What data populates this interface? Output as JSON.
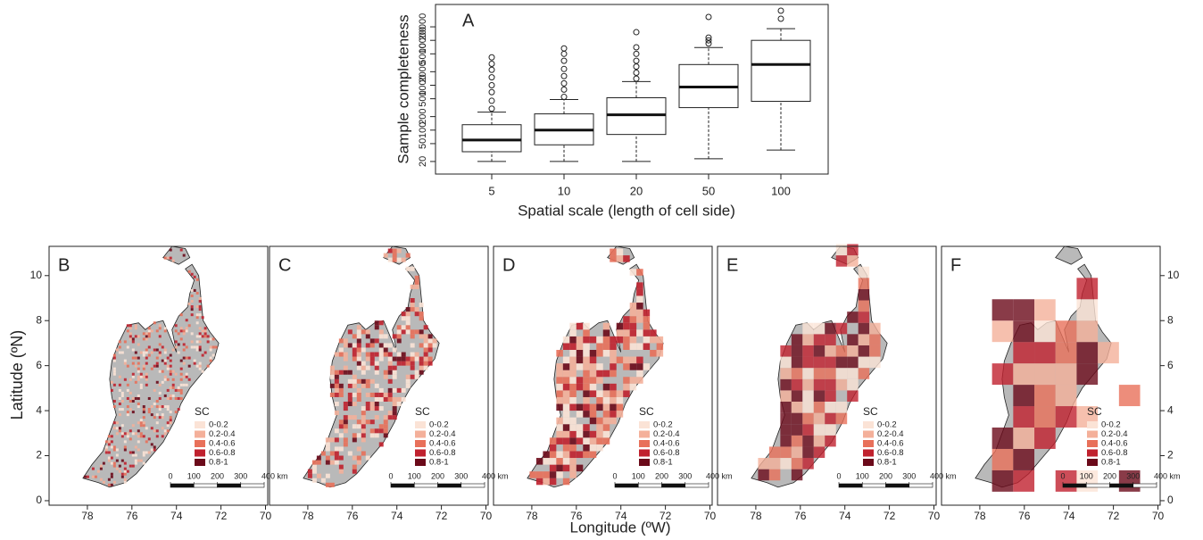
{
  "chart_data": [
    {
      "type": "box",
      "panel_label": "A",
      "y_label": "Sample completeness",
      "x_label": "Spatial scale (length of cell side)",
      "categories": [
        "5",
        "10",
        "20",
        "50",
        "100"
      ],
      "boxes": [
        {
          "whislo": 20,
          "q1": 33,
          "med": 60,
          "q3": 132,
          "whishi": 252,
          "outliers": [
            300,
            450,
            700,
            1000,
            1500,
            2200,
            3000,
            4180
          ]
        },
        {
          "whislo": 20,
          "q1": 47,
          "med": 100,
          "q3": 230,
          "whishi": 480,
          "outliers": [
            550,
            800,
            1100,
            1600,
            2300,
            3500,
            5000,
            6620
          ]
        },
        {
          "whislo": 20,
          "q1": 80,
          "med": 219,
          "q3": 526,
          "whishi": 1205,
          "outliers": [
            1400,
            1900,
            2600,
            3500,
            5000,
            7000,
            15200
          ]
        },
        {
          "whislo": 23,
          "q1": 317,
          "med": 914,
          "q3": 2890,
          "whishi": 6930,
          "outliers": [
            8500,
            10000,
            11500,
            33200
          ]
        },
        {
          "whislo": 36,
          "q1": 438,
          "med": 2890,
          "q3": 10000,
          "whishi": 18200,
          "outliers": [
            30300,
            45800
          ]
        }
      ],
      "log_y": true,
      "ylim": [
        10.5,
        63000
      ],
      "yticks": [
        20,
        50,
        100,
        200,
        500,
        1000,
        2000,
        5000,
        10000,
        20000
      ]
    },
    {
      "type": "map",
      "panels": [
        "B",
        "C",
        "D",
        "E",
        "F"
      ],
      "x_label": "Longitude (ºW)",
      "y_label": "Latitude (ºN)",
      "xlim": [
        79.72,
        69.9
      ],
      "xticks": [
        78,
        76,
        74,
        72,
        70
      ],
      "ylim": [
        -0.2,
        11.3
      ],
      "yticks": [
        0,
        2,
        4,
        6,
        8,
        10
      ],
      "legend_title": "SC",
      "legend": [
        {
          "label": "0-0.2",
          "color": "#fbe3d6"
        },
        {
          "label": "0.2-0.4",
          "color": "#f4b09a"
        },
        {
          "label": "0.4-0.6",
          "color": "#e8705a"
        },
        {
          "label": "0.6-0.8",
          "color": "#c0212e"
        },
        {
          "label": "0.8-1",
          "color": "#6b0a1a"
        }
      ],
      "scale_bar": [
        0,
        100,
        200,
        300,
        {
          "value": 400,
          "label": "400 km"
        }
      ]
    }
  ]
}
